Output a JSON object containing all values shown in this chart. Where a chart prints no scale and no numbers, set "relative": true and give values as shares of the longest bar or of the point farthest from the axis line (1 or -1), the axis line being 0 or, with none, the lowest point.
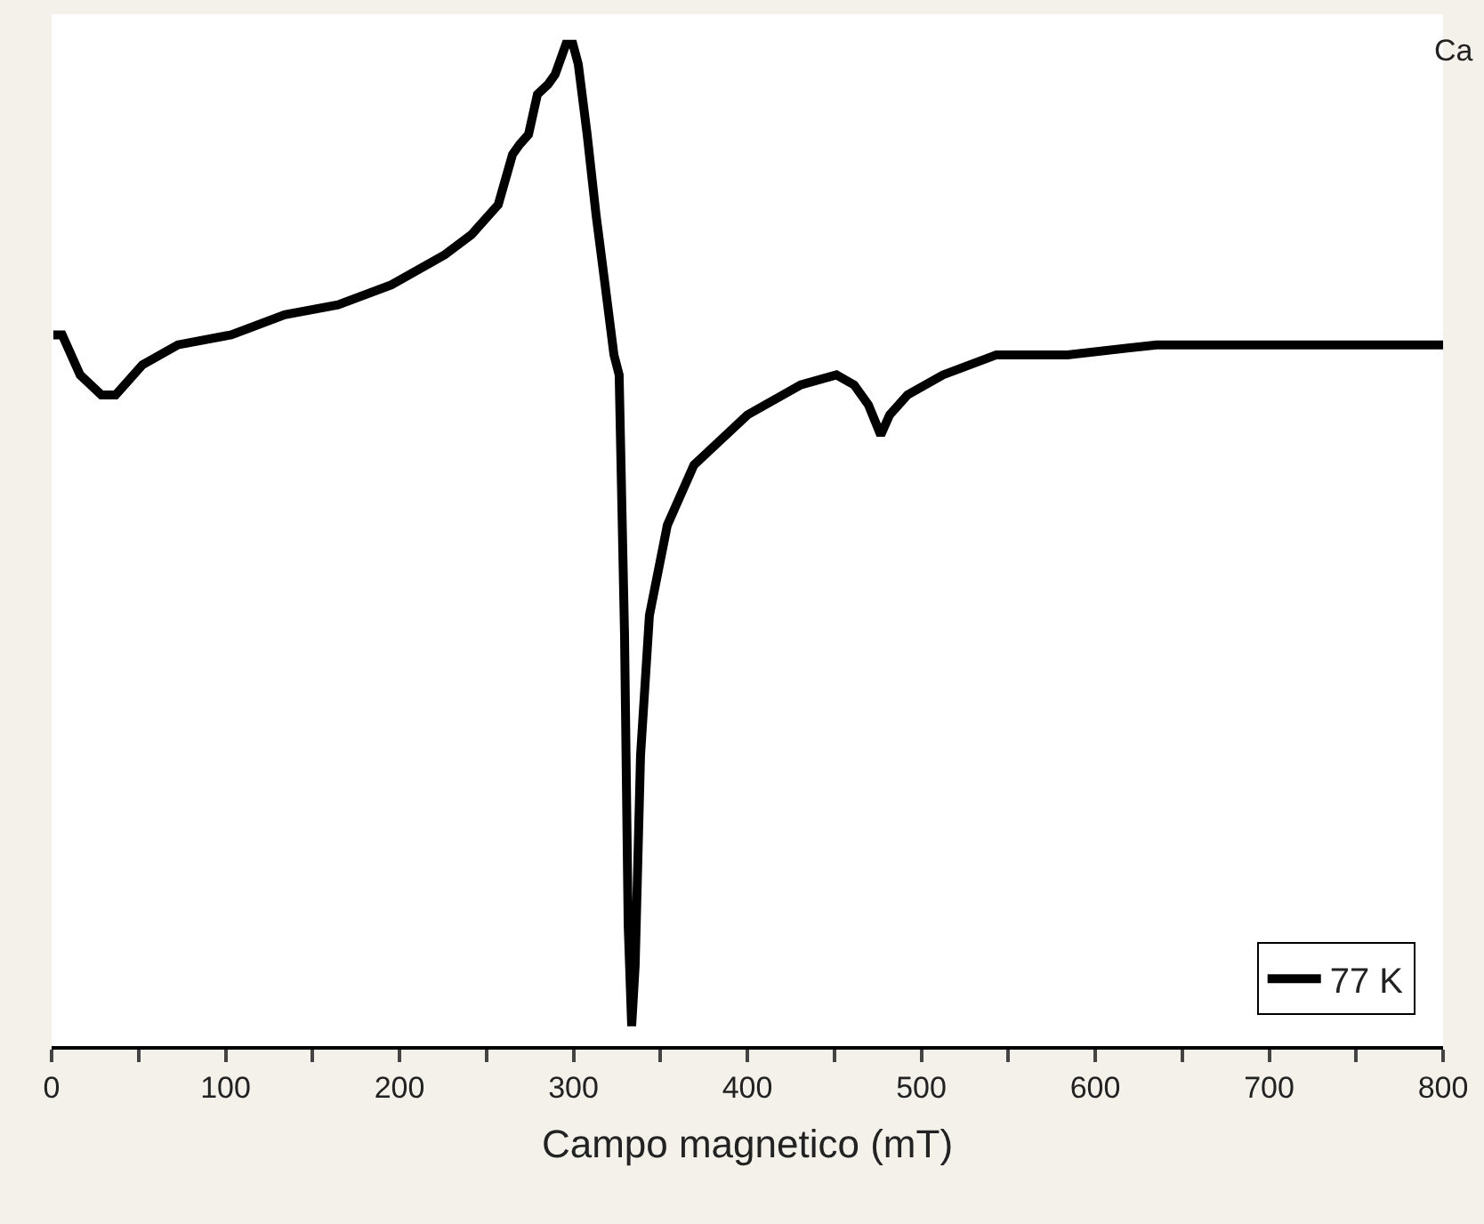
{
  "chart_data": {
    "type": "line",
    "relative": true,
    "xlabel": "Campo magnetico (mT)",
    "annotations": [
      "Ca"
    ],
    "xlim": [
      0,
      800
    ],
    "xticks": [
      0,
      {
        "value": 50,
        "label": null
      },
      100,
      {
        "value": 150,
        "label": null
      },
      200,
      {
        "value": 250,
        "label": null
      },
      300,
      {
        "value": 350,
        "label": null
      },
      400,
      {
        "value": 450,
        "label": null
      },
      500,
      {
        "value": 550,
        "label": null
      },
      600,
      {
        "value": 650,
        "label": null
      },
      700,
      {
        "value": 750,
        "label": null
      },
      800
    ],
    "tick_labels": "x",
    "legend": "bottom right",
    "marker": "none",
    "line_style": "solid",
    "series": [
      {
        "name": "77 K",
        "color": "#000000",
        "x": [
          1.0,
          6.1,
          16.4,
          28.6,
          36.8,
          52.2,
          72.6,
          103.3,
          134.0,
          164.7,
          195.4,
          226.1,
          241.4,
          256.8,
          265.0,
          269.1,
          274.2,
          279.3,
          285.4,
          289.5,
          295.7,
          299.7,
          302.8,
          307.9,
          313.0,
          318.2,
          323.3,
          326.3,
          329.4,
          331.5,
          333.5,
          335.5,
          338.6,
          343.7,
          354.0,
          369.3,
          400.0,
          430.7,
          451.2,
          461.4,
          469.6,
          476.7,
          481.8,
          492.1,
          512.5,
          543.2,
          584.1,
          635.3,
          686.4,
          737.6,
          800
        ],
        "values": [
          0.71,
          0.71,
          0.67,
          0.65,
          0.65,
          0.68,
          0.7,
          0.71,
          0.73,
          0.74,
          0.76,
          0.79,
          0.81,
          0.84,
          0.89,
          0.9,
          0.91,
          0.95,
          0.96,
          0.97,
          1.0,
          1.0,
          0.98,
          0.91,
          0.83,
          0.76,
          0.69,
          0.67,
          0.41,
          0.12,
          0.02,
          0.08,
          0.29,
          0.43,
          0.52,
          0.58,
          0.63,
          0.66,
          0.67,
          0.66,
          0.64,
          0.61,
          0.63,
          0.65,
          0.67,
          0.69,
          0.69,
          0.7,
          0.7,
          0.7,
          0.7
        ]
      }
    ]
  }
}
